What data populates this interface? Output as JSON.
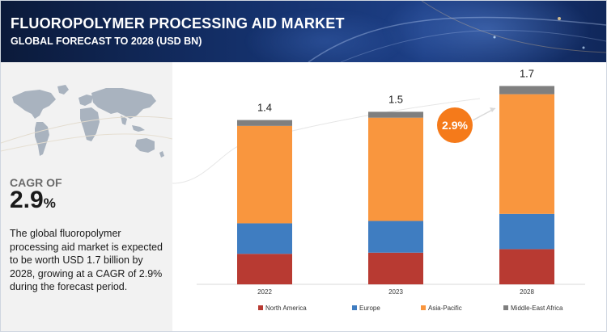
{
  "header": {
    "title": "FLUOROPOLYMER PROCESSING AID MARKET",
    "subtitle": "GLOBAL FORECAST TO 2028 (USD BN)"
  },
  "sidebar": {
    "cagr_label": "CAGR OF",
    "cagr_number": "2.9",
    "cagr_percent_sign": "%",
    "description": "The global fluoropolymer processing aid market is expected to be worth USD 1.7 billion by 2028, growing at a CAGR of 2.9% during the forecast period."
  },
  "colors": {
    "north_america": "#b83a32",
    "europe": "#3f7dc1",
    "asia_pacific": "#f9963e",
    "middle_east_africa": "#7f7f7f",
    "cagr_badge": "#f57a1a"
  },
  "chart_data": {
    "type": "bar",
    "stacked": true,
    "categories": [
      "2022",
      "2023",
      "2028"
    ],
    "totals": [
      "1.4",
      "1.5",
      "1.7"
    ],
    "series": [
      {
        "name": "North America",
        "values": [
          0.26,
          0.27,
          0.3
        ]
      },
      {
        "name": "Europe",
        "values": [
          0.26,
          0.27,
          0.3
        ]
      },
      {
        "name": "Asia-Pacific",
        "values": [
          0.83,
          0.88,
          1.02
        ]
      },
      {
        "name": "Middle-East Africa",
        "values": [
          0.05,
          0.05,
          0.07
        ]
      }
    ],
    "annotation": "2.9%",
    "ylim": [
      0,
      1.7
    ],
    "legend_position": "bottom",
    "grid": false
  }
}
